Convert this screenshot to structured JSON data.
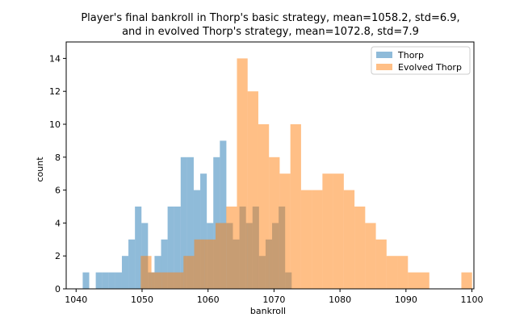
{
  "chart_data": {
    "type": "bar",
    "subtype": "overlapping-histogram",
    "title_lines": [
      "Player's final bankroll in Thorp's basic strategy, mean=1058.2, std=6.9,",
      "and in evolved Thorp's strategy, mean=1072.8, std=7.9"
    ],
    "xlabel": "bankroll",
    "ylabel": "count",
    "xlim": [
      1038.5,
      1100.3
    ],
    "ylim": [
      0,
      15
    ],
    "xticks": [
      "1040",
      "1050",
      "1060",
      "1070",
      "1080",
      "1090",
      "1100"
    ],
    "yticks": [
      "0",
      "2",
      "4",
      "6",
      "8",
      "10",
      "12",
      "14"
    ],
    "grid": false,
    "legend_position": "top-right",
    "series": [
      {
        "name": "Thorp",
        "color": "#1f77b4",
        "bin_edges_start": 1041,
        "bin_width": 0.99,
        "counts": [
          1,
          0,
          1,
          1,
          1,
          1,
          2,
          3,
          5,
          4,
          1,
          2,
          3,
          5,
          5,
          8,
          8,
          6,
          7,
          4,
          8,
          9,
          4,
          3,
          5,
          4,
          5,
          2,
          3,
          4,
          5,
          1
        ]
      },
      {
        "name": "Evolved Thorp",
        "color": "#ff7f0e",
        "bin_edges_start": 1049.8,
        "bin_width": 1.62,
        "counts": [
          2,
          1,
          1,
          1,
          2,
          3,
          3,
          4,
          5,
          14,
          12,
          10,
          8,
          7,
          10,
          6,
          6,
          7,
          7,
          6,
          5,
          4,
          3,
          2,
          2,
          1,
          1,
          0,
          0,
          0,
          1
        ]
      }
    ]
  }
}
